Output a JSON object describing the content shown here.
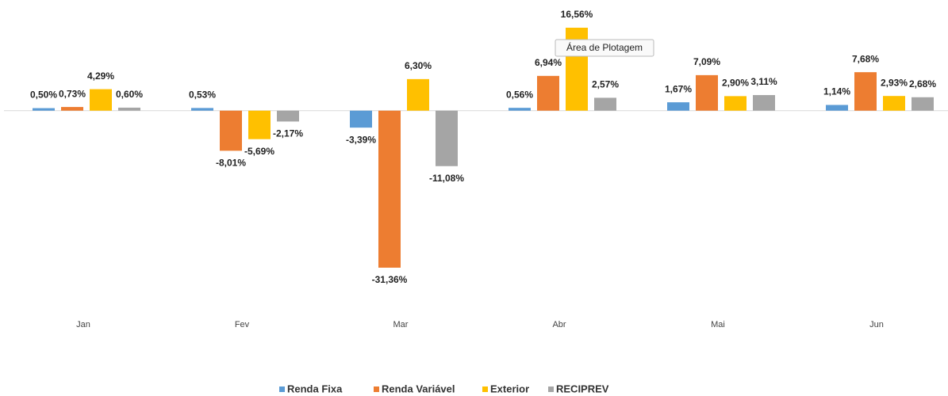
{
  "chart_data": {
    "type": "bar",
    "categories": [
      "Jan",
      "Fev",
      "Mar",
      "Abr",
      "Mai",
      "Jun"
    ],
    "series": [
      {
        "name": "Renda Fixa",
        "color": "#5b9bd5",
        "values": [
          0.5,
          0.53,
          -3.39,
          0.56,
          1.67,
          1.14
        ],
        "value_labels": [
          "0,50%",
          "0,53%",
          "-3,39%",
          "0,56%",
          "1,67%",
          "1,14%"
        ]
      },
      {
        "name": "Renda Variável",
        "color": "#ed7d31",
        "values": [
          0.73,
          -8.01,
          -31.36,
          6.94,
          7.09,
          7.68
        ],
        "value_labels": [
          "0,73%",
          "-8,01%",
          "-31,36%",
          "6,94%",
          "7,09%",
          "7,68%"
        ]
      },
      {
        "name": "Exterior",
        "color": "#ffc000",
        "values": [
          4.29,
          -5.69,
          6.3,
          16.56,
          2.9,
          2.93
        ],
        "value_labels": [
          "4,29%",
          "-5,69%",
          "6,30%",
          "16,56%",
          "2,90%",
          "2,93%"
        ]
      },
      {
        "name": "RECIPREV",
        "color": "#a5a5a5",
        "values": [
          0.6,
          -2.17,
          -11.08,
          2.57,
          3.11,
          2.68
        ],
        "value_labels": [
          "0,60%",
          "-2,17%",
          "-11,08%",
          "2,57%",
          "3,11%",
          "2,68%"
        ]
      }
    ],
    "legend": "bottom",
    "tooltip": "Área de Plotagem"
  }
}
